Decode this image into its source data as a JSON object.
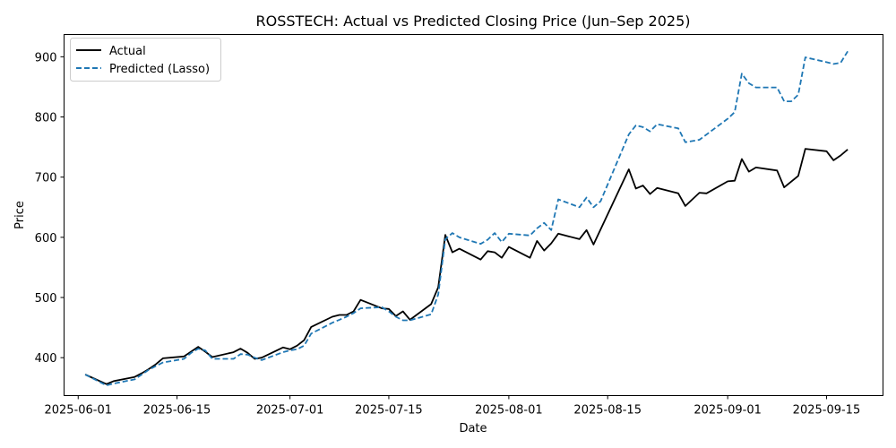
{
  "chart_data": {
    "type": "line",
    "title": "ROSSTECH: Actual vs Predicted Closing Price (Jun–Sep 2025)",
    "xlabel": "Date",
    "ylabel": "Price",
    "x_ticks": [
      "2025-06-01",
      "2025-06-15",
      "2025-07-01",
      "2025-07-15",
      "2025-08-01",
      "2025-08-15",
      "2025-09-01",
      "2025-09-15"
    ],
    "y_ticks": [
      400,
      500,
      600,
      700,
      800,
      900
    ],
    "ylim": [
      337,
      937
    ],
    "xlim": [
      "2025-05-30",
      "2025-09-23"
    ],
    "grid": false,
    "legend_position": "top-left",
    "series": [
      {
        "name": "Actual",
        "color": "#000000",
        "style": "solid",
        "points": [
          [
            "2025-06-02",
            372
          ],
          [
            "2025-06-05",
            356
          ],
          [
            "2025-06-06",
            361
          ],
          [
            "2025-06-09",
            368
          ],
          [
            "2025-06-10",
            374
          ],
          [
            "2025-06-11",
            381
          ],
          [
            "2025-06-12",
            389
          ],
          [
            "2025-06-13",
            399
          ],
          [
            "2025-06-16",
            402
          ],
          [
            "2025-06-18",
            418
          ],
          [
            "2025-06-19",
            410
          ],
          [
            "2025-06-20",
            401
          ],
          [
            "2025-06-23",
            409
          ],
          [
            "2025-06-24",
            415
          ],
          [
            "2025-06-25",
            408
          ],
          [
            "2025-06-26",
            398
          ],
          [
            "2025-06-27",
            400
          ],
          [
            "2025-06-30",
            417
          ],
          [
            "2025-07-01",
            414
          ],
          [
            "2025-07-02",
            420
          ],
          [
            "2025-07-03",
            429
          ],
          [
            "2025-07-04",
            451
          ],
          [
            "2025-07-07",
            468
          ],
          [
            "2025-07-08",
            471
          ],
          [
            "2025-07-09",
            471
          ],
          [
            "2025-07-10",
            477
          ],
          [
            "2025-07-11",
            496
          ],
          [
            "2025-07-14",
            482
          ],
          [
            "2025-07-15",
            481
          ],
          [
            "2025-07-16",
            469
          ],
          [
            "2025-07-17",
            477
          ],
          [
            "2025-07-18",
            463
          ],
          [
            "2025-07-21",
            489
          ],
          [
            "2025-07-22",
            517
          ],
          [
            "2025-07-23",
            604
          ],
          [
            "2025-07-24",
            575
          ],
          [
            "2025-07-25",
            581
          ],
          [
            "2025-07-28",
            563
          ],
          [
            "2025-07-29",
            577
          ],
          [
            "2025-07-30",
            575
          ],
          [
            "2025-07-31",
            566
          ],
          [
            "2025-08-01",
            584
          ],
          [
            "2025-08-04",
            566
          ],
          [
            "2025-08-05",
            594
          ],
          [
            "2025-08-06",
            578
          ],
          [
            "2025-08-07",
            590
          ],
          [
            "2025-08-08",
            606
          ],
          [
            "2025-08-11",
            597
          ],
          [
            "2025-08-12",
            612
          ],
          [
            "2025-08-13",
            588
          ],
          [
            "2025-08-18",
            713
          ],
          [
            "2025-08-19",
            681
          ],
          [
            "2025-08-20",
            686
          ],
          [
            "2025-08-21",
            672
          ],
          [
            "2025-08-22",
            682
          ],
          [
            "2025-08-25",
            673
          ],
          [
            "2025-08-26",
            652
          ],
          [
            "2025-08-28",
            674
          ],
          [
            "2025-08-29",
            673
          ],
          [
            "2025-09-01",
            693
          ],
          [
            "2025-09-02",
            694
          ],
          [
            "2025-09-03",
            730
          ],
          [
            "2025-09-04",
            709
          ],
          [
            "2025-09-05",
            716
          ],
          [
            "2025-09-08",
            711
          ],
          [
            "2025-09-09",
            683
          ],
          [
            "2025-09-11",
            702
          ],
          [
            "2025-09-12",
            747
          ],
          [
            "2025-09-15",
            743
          ],
          [
            "2025-09-16",
            728
          ],
          [
            "2025-09-17",
            736
          ],
          [
            "2025-09-18",
            746
          ]
        ]
      },
      {
        "name": "Predicted (Lasso)",
        "color": "#1f77b4",
        "style": "dashed",
        "points": [
          [
            "2025-06-02",
            372
          ],
          [
            "2025-06-05",
            354
          ],
          [
            "2025-06-06",
            357
          ],
          [
            "2025-06-09",
            364
          ],
          [
            "2025-06-10",
            372
          ],
          [
            "2025-06-11",
            380
          ],
          [
            "2025-06-12",
            386
          ],
          [
            "2025-06-13",
            392
          ],
          [
            "2025-06-16",
            398
          ],
          [
            "2025-06-17",
            408
          ],
          [
            "2025-06-18",
            415
          ],
          [
            "2025-06-19",
            412
          ],
          [
            "2025-06-20",
            398
          ],
          [
            "2025-06-23",
            398
          ],
          [
            "2025-06-24",
            406
          ],
          [
            "2025-06-25",
            405
          ],
          [
            "2025-06-26",
            400
          ],
          [
            "2025-06-27",
            396
          ],
          [
            "2025-06-30",
            409
          ],
          [
            "2025-07-01",
            412
          ],
          [
            "2025-07-02",
            414
          ],
          [
            "2025-07-03",
            420
          ],
          [
            "2025-07-04",
            440
          ],
          [
            "2025-07-07",
            458
          ],
          [
            "2025-07-08",
            463
          ],
          [
            "2025-07-09",
            468
          ],
          [
            "2025-07-10",
            474
          ],
          [
            "2025-07-11",
            482
          ],
          [
            "2025-07-14",
            484
          ],
          [
            "2025-07-15",
            477
          ],
          [
            "2025-07-16",
            468
          ],
          [
            "2025-07-17",
            462
          ],
          [
            "2025-07-18",
            462
          ],
          [
            "2025-07-21",
            472
          ],
          [
            "2025-07-22",
            505
          ],
          [
            "2025-07-23",
            597
          ],
          [
            "2025-07-24",
            607
          ],
          [
            "2025-07-25",
            600
          ],
          [
            "2025-07-28",
            589
          ],
          [
            "2025-07-29",
            596
          ],
          [
            "2025-07-30",
            607
          ],
          [
            "2025-07-31",
            592
          ],
          [
            "2025-08-01",
            606
          ],
          [
            "2025-08-04",
            603
          ],
          [
            "2025-08-05",
            615
          ],
          [
            "2025-08-06",
            624
          ],
          [
            "2025-08-07",
            612
          ],
          [
            "2025-08-08",
            663
          ],
          [
            "2025-08-11",
            650
          ],
          [
            "2025-08-12",
            666
          ],
          [
            "2025-08-13",
            650
          ],
          [
            "2025-08-14",
            660
          ],
          [
            "2025-08-18",
            771
          ],
          [
            "2025-08-19",
            786
          ],
          [
            "2025-08-20",
            783
          ],
          [
            "2025-08-21",
            776
          ],
          [
            "2025-08-22",
            788
          ],
          [
            "2025-08-25",
            781
          ],
          [
            "2025-08-26",
            758
          ],
          [
            "2025-08-28",
            762
          ],
          [
            "2025-09-01",
            797
          ],
          [
            "2025-09-02",
            808
          ],
          [
            "2025-09-03",
            872
          ],
          [
            "2025-09-04",
            856
          ],
          [
            "2025-09-05",
            849
          ],
          [
            "2025-09-08",
            849
          ],
          [
            "2025-09-09",
            826
          ],
          [
            "2025-09-10",
            826
          ],
          [
            "2025-09-11",
            837
          ],
          [
            "2025-09-12",
            899
          ],
          [
            "2025-09-15",
            891
          ],
          [
            "2025-09-16",
            888
          ],
          [
            "2025-09-17",
            890
          ],
          [
            "2025-09-18",
            909
          ]
        ]
      }
    ]
  }
}
